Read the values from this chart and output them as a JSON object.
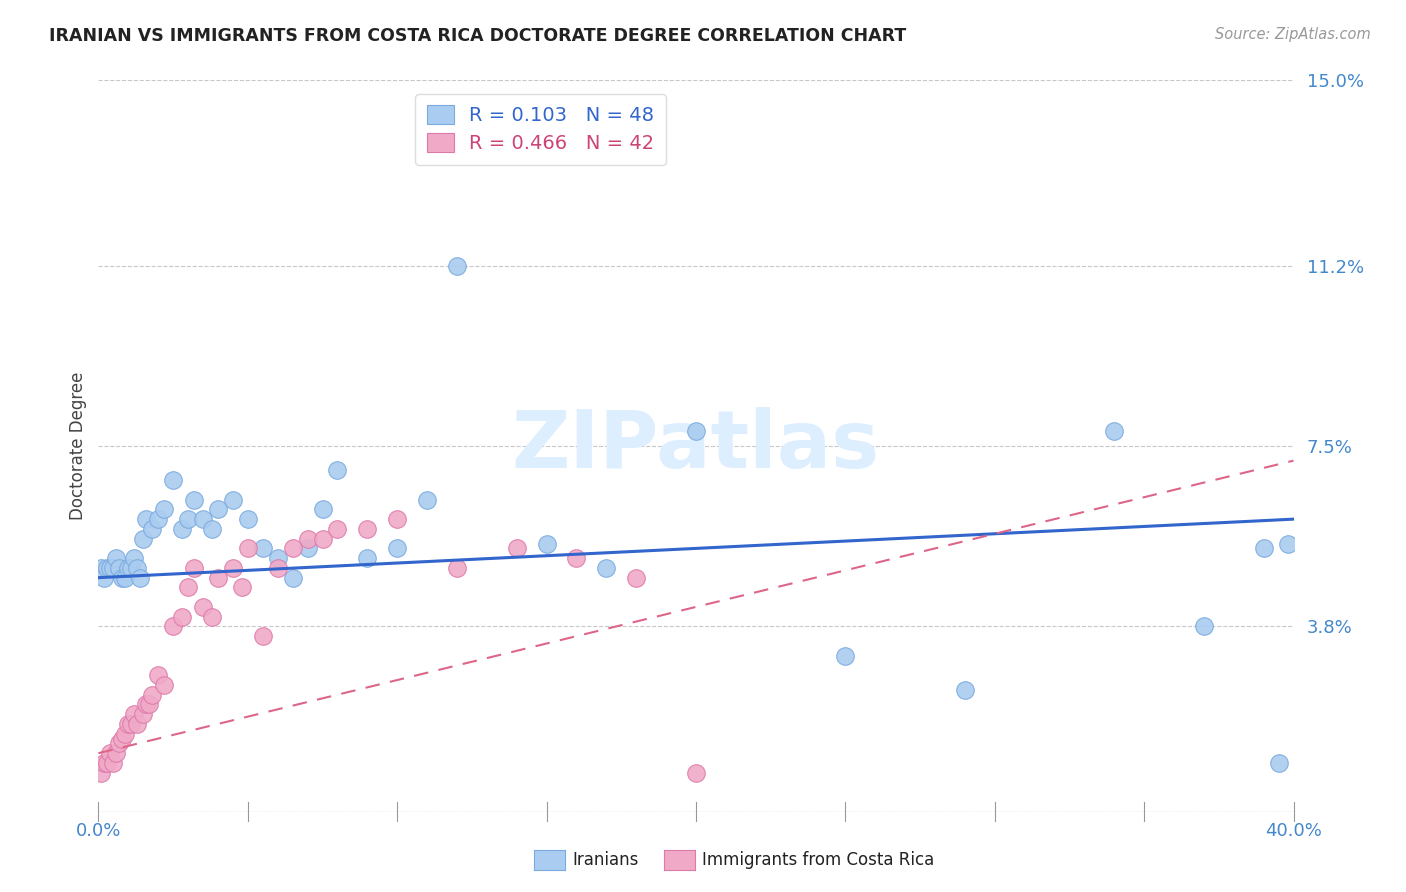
{
  "title": "IRANIAN VS IMMIGRANTS FROM COSTA RICA DOCTORATE DEGREE CORRELATION CHART",
  "source": "Source: ZipAtlas.com",
  "ylabel": "Doctorate Degree",
  "xlim": [
    0.0,
    0.4
  ],
  "ylim": [
    0.0,
    0.15
  ],
  "yticks": [
    0.0,
    0.038,
    0.075,
    0.112,
    0.15
  ],
  "ytick_labels": [
    "",
    "3.8%",
    "7.5%",
    "11.2%",
    "15.0%"
  ],
  "xticks": [
    0.0,
    0.05,
    0.1,
    0.15,
    0.2,
    0.25,
    0.3,
    0.35,
    0.4
  ],
  "xtick_labels": [
    "0.0%",
    "",
    "",
    "",
    "",
    "",
    "",
    "",
    "40.0%"
  ],
  "grid_color": "#c8c8c8",
  "background_color": "#ffffff",
  "iranians_color": "#aaccf0",
  "iranians_edge_color": "#7aaade",
  "costa_rica_color": "#f0aac8",
  "costa_rica_edge_color": "#de7aaa",
  "trend_iranians_color": "#3366cc",
  "trend_costa_rica_color": "#dd6688",
  "watermark_color": "#ddeeff",
  "iranians_x": [
    0.001,
    0.002,
    0.003,
    0.004,
    0.005,
    0.006,
    0.007,
    0.008,
    0.009,
    0.01,
    0.011,
    0.012,
    0.013,
    0.014,
    0.015,
    0.016,
    0.018,
    0.02,
    0.022,
    0.025,
    0.028,
    0.03,
    0.032,
    0.035,
    0.038,
    0.04,
    0.045,
    0.05,
    0.055,
    0.06,
    0.065,
    0.07,
    0.075,
    0.08,
    0.09,
    0.1,
    0.11,
    0.12,
    0.15,
    0.17,
    0.2,
    0.25,
    0.29,
    0.34,
    0.37,
    0.39,
    0.395,
    0.398
  ],
  "iranians_y": [
    0.05,
    0.048,
    0.05,
    0.05,
    0.05,
    0.052,
    0.05,
    0.048,
    0.048,
    0.05,
    0.05,
    0.052,
    0.05,
    0.048,
    0.056,
    0.06,
    0.058,
    0.06,
    0.062,
    0.068,
    0.058,
    0.06,
    0.064,
    0.06,
    0.058,
    0.062,
    0.064,
    0.06,
    0.054,
    0.052,
    0.048,
    0.054,
    0.062,
    0.07,
    0.052,
    0.054,
    0.064,
    0.112,
    0.055,
    0.05,
    0.078,
    0.032,
    0.025,
    0.078,
    0.038,
    0.054,
    0.01,
    0.055
  ],
  "costa_rica_x": [
    0.001,
    0.002,
    0.003,
    0.004,
    0.005,
    0.006,
    0.007,
    0.008,
    0.009,
    0.01,
    0.011,
    0.012,
    0.013,
    0.015,
    0.016,
    0.017,
    0.018,
    0.02,
    0.022,
    0.025,
    0.028,
    0.03,
    0.032,
    0.035,
    0.038,
    0.04,
    0.045,
    0.048,
    0.05,
    0.055,
    0.06,
    0.065,
    0.07,
    0.075,
    0.08,
    0.09,
    0.1,
    0.12,
    0.14,
    0.16,
    0.18,
    0.2
  ],
  "costa_rica_y": [
    0.008,
    0.01,
    0.01,
    0.012,
    0.01,
    0.012,
    0.014,
    0.015,
    0.016,
    0.018,
    0.018,
    0.02,
    0.018,
    0.02,
    0.022,
    0.022,
    0.024,
    0.028,
    0.026,
    0.038,
    0.04,
    0.046,
    0.05,
    0.042,
    0.04,
    0.048,
    0.05,
    0.046,
    0.054,
    0.036,
    0.05,
    0.054,
    0.056,
    0.056,
    0.058,
    0.058,
    0.06,
    0.05,
    0.054,
    0.052,
    0.048,
    0.008
  ]
}
